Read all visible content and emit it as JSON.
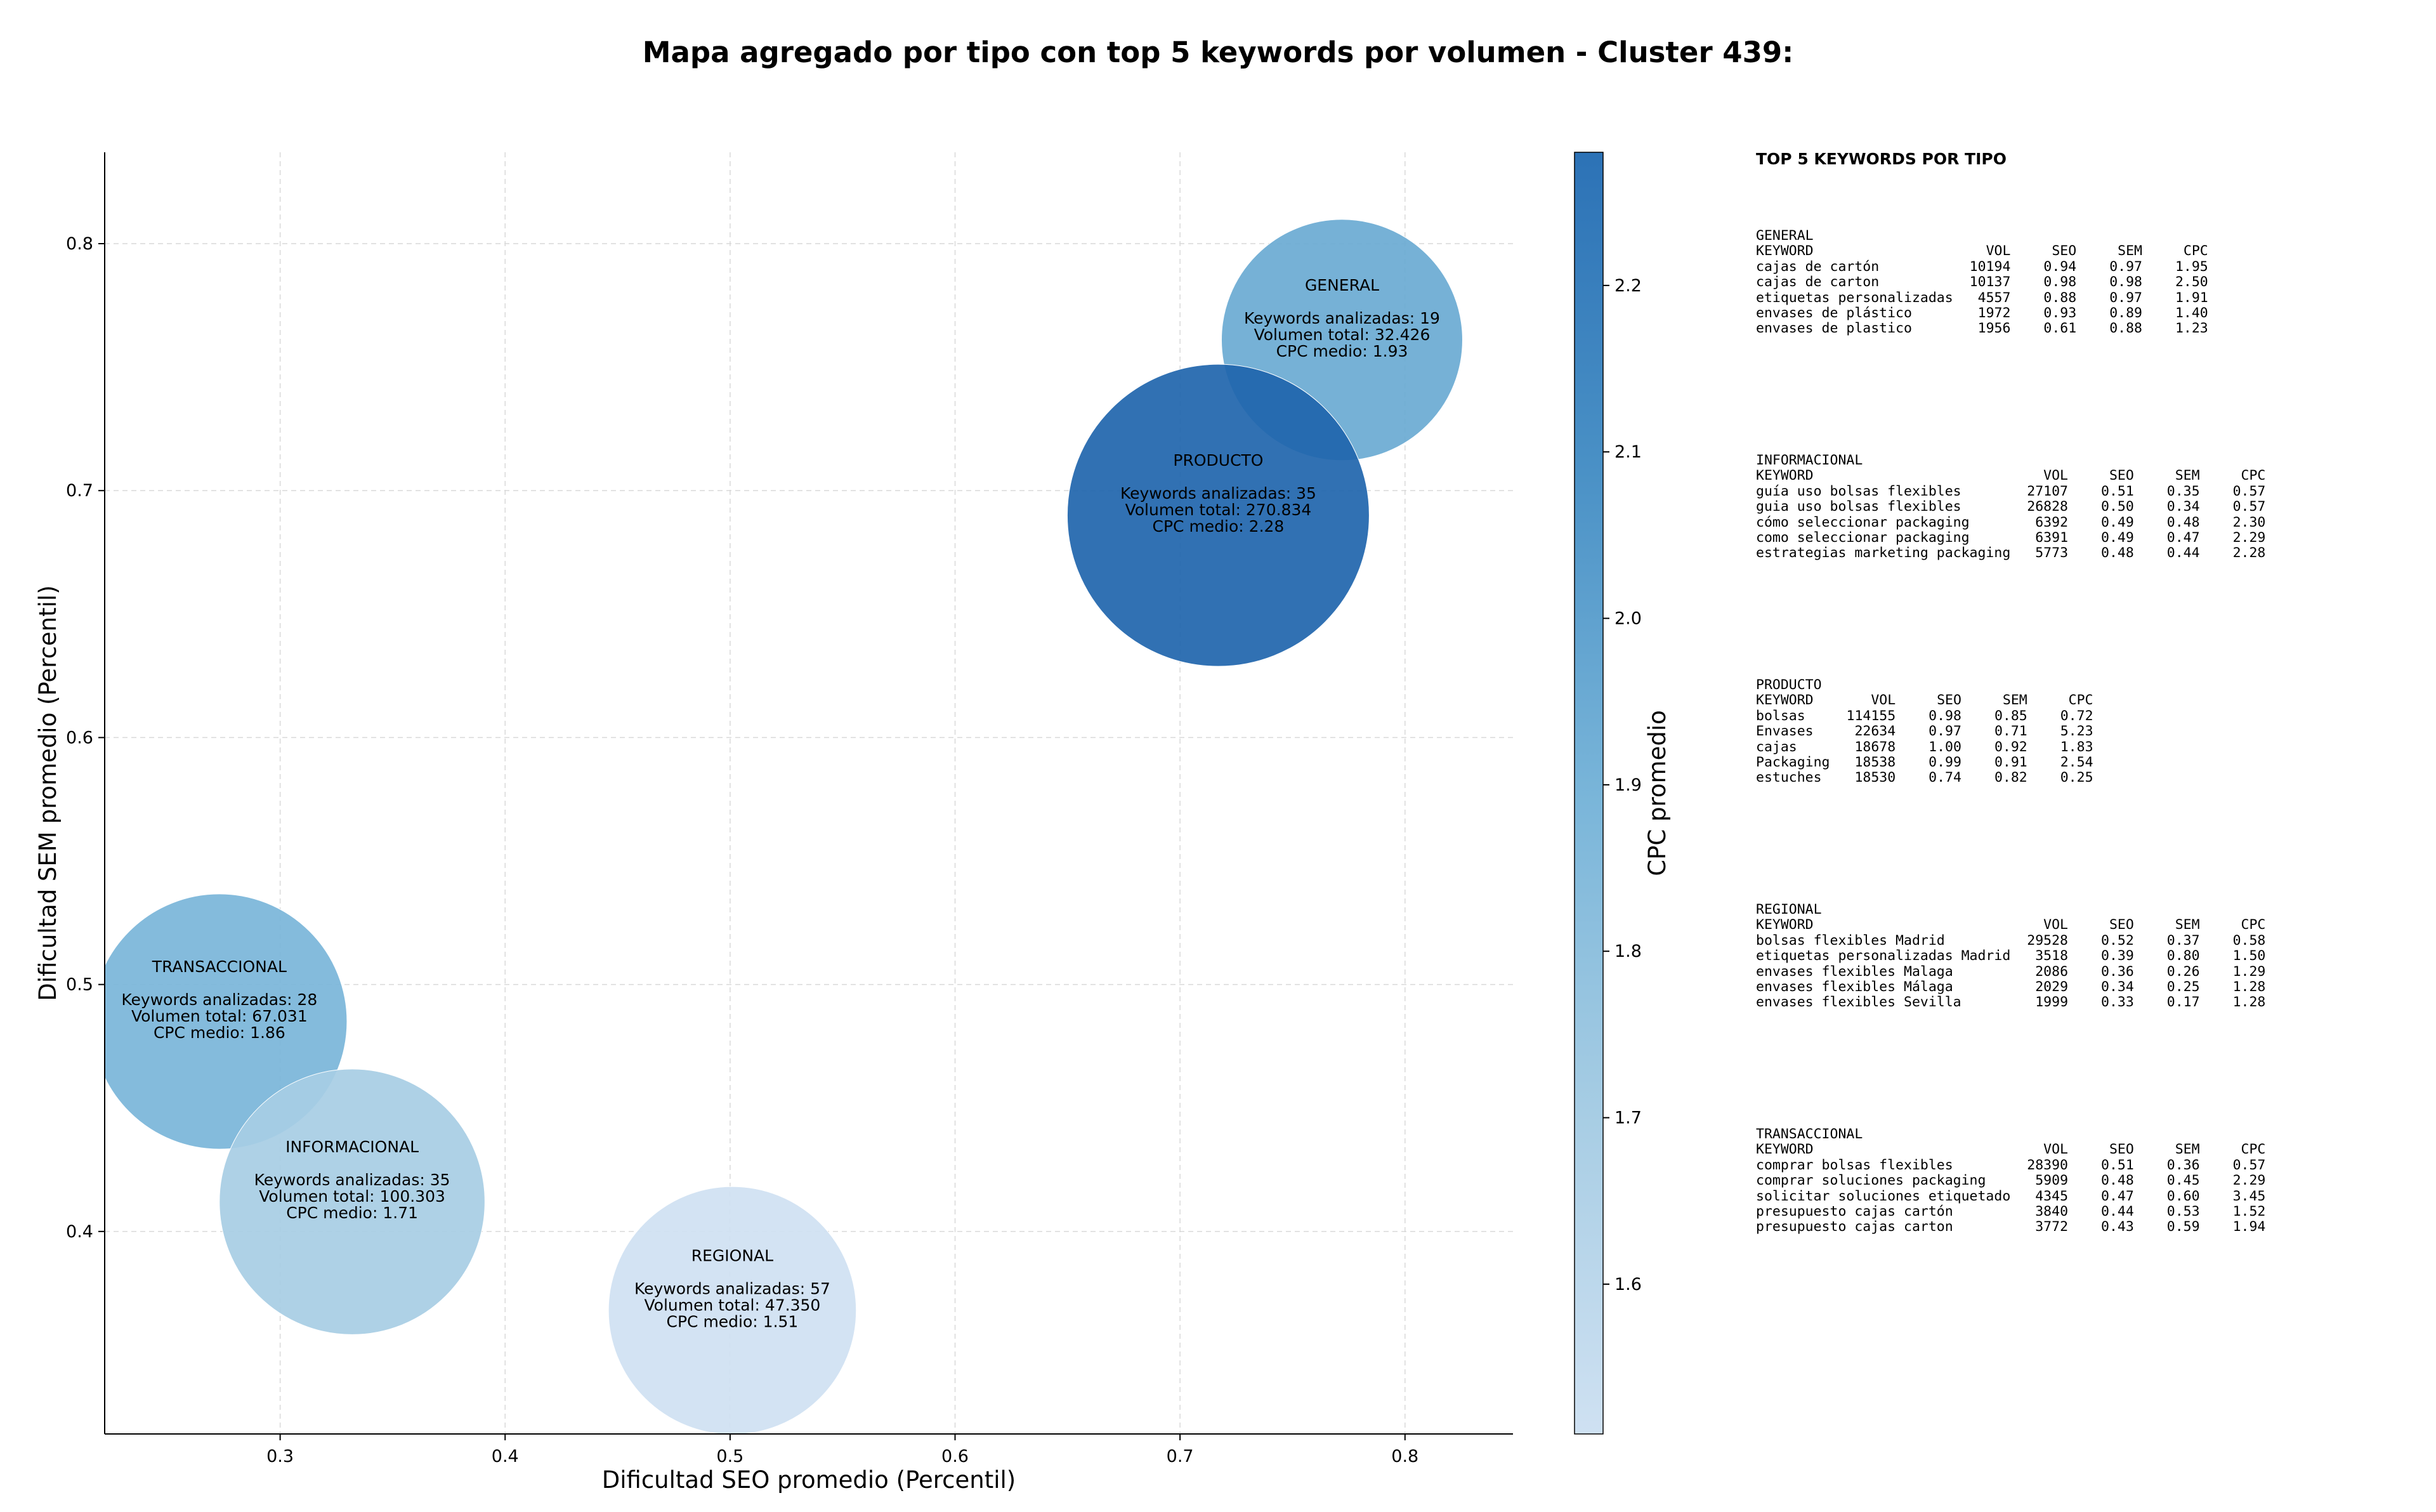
{
  "title": "Mapa agregado por tipo con top 5 keywords por volumen - Cluster 439:",
  "chart_data": {
    "type": "scatter",
    "subtype": "bubble",
    "xlabel": "Dificultad SEO promedio (Percentil)",
    "ylabel": "Dificultad SEM promedio (Percentil)",
    "colorbar_label": "CPC promedio",
    "xlim": [
      0.222,
      0.848
    ],
    "ylim": [
      0.318,
      0.837
    ],
    "xticks": [
      "0.3",
      "0.4",
      "0.5",
      "0.6",
      "0.7",
      "0.8"
    ],
    "yticks": [
      "0.4",
      "0.5",
      "0.6",
      "0.7",
      "0.8"
    ],
    "colorbar_range": [
      1.51,
      2.28
    ],
    "colorbar_ticks": [
      "1.6",
      "1.7",
      "1.8",
      "1.9",
      "2.0",
      "2.1",
      "2.2"
    ],
    "colormap": "Blues",
    "grid": true,
    "points": [
      {
        "name": "GENERAL",
        "x": 0.772,
        "y": 0.761,
        "keywords_label": "Keywords analizadas: 19",
        "volume_label": "Volumen total: 32.426",
        "cpc_label": "CPC medio: 1.93",
        "volume": 32426,
        "cpc": 1.93,
        "color": "#6aaad3"
      },
      {
        "name": "PRODUCTO",
        "x": 0.717,
        "y": 0.69,
        "keywords_label": "Keywords analizadas: 35",
        "volume_label": "Volumen total: 270.834",
        "cpc_label": "CPC medio: 2.28",
        "volume": 270834,
        "cpc": 2.28,
        "color": "#1f65ad"
      },
      {
        "name": "TRANSACCIONAL",
        "x": 0.273,
        "y": 0.485,
        "keywords_label": "Keywords analizadas: 28",
        "volume_label": "Volumen total: 67.031",
        "cpc_label": "CPC medio: 1.86",
        "volume": 67031,
        "cpc": 1.86,
        "color": "#79b5d9"
      },
      {
        "name": "INFORMACIONAL",
        "x": 0.332,
        "y": 0.412,
        "keywords_label": "Keywords analizadas: 35",
        "volume_label": "Volumen total: 100.303",
        "cpc_label": "CPC medio: 1.71",
        "volume": 100303,
        "cpc": 1.71,
        "color": "#a7cde4"
      },
      {
        "name": "REGIONAL",
        "x": 0.501,
        "y": 0.368,
        "keywords_label": "Keywords analizadas: 57",
        "volume_label": "Volumen total: 47.350",
        "cpc_label": "CPC medio: 1.51",
        "volume": 47350,
        "cpc": 1.51,
        "color": "#cfe1f2"
      }
    ]
  },
  "tables": {
    "heading": "TOP 5 KEYWORDS POR TIPO",
    "blocks": [
      {
        "type": "GENERAL",
        "columns": [
          "KEYWORD",
          "VOL",
          "SEO",
          "SEM",
          "CPC"
        ],
        "rows": [
          [
            "cajas de cartón",
            "10194",
            "0.94",
            "0.97",
            "1.95"
          ],
          [
            "cajas de carton",
            "10137",
            "0.98",
            "0.98",
            "2.50"
          ],
          [
            "etiquetas personalizadas",
            "4557",
            "0.88",
            "0.97",
            "1.91"
          ],
          [
            "envases de plástico",
            "1972",
            "0.93",
            "0.89",
            "1.40"
          ],
          [
            "envases de plastico",
            "1956",
            "0.61",
            "0.88",
            "1.23"
          ]
        ]
      },
      {
        "type": "INFORMACIONAL",
        "columns": [
          "KEYWORD",
          "VOL",
          "SEO",
          "SEM",
          "CPC"
        ],
        "rows": [
          [
            "guía uso bolsas flexibles",
            "27107",
            "0.51",
            "0.35",
            "0.57"
          ],
          [
            "guia uso bolsas flexibles",
            "26828",
            "0.50",
            "0.34",
            "0.57"
          ],
          [
            "cómo seleccionar packaging",
            "6392",
            "0.49",
            "0.48",
            "2.30"
          ],
          [
            "como seleccionar packaging",
            "6391",
            "0.49",
            "0.47",
            "2.29"
          ],
          [
            "estrategias marketing packaging",
            "5773",
            "0.48",
            "0.44",
            "2.28"
          ]
        ]
      },
      {
        "type": "PRODUCTO",
        "columns": [
          "KEYWORD",
          "VOL",
          "SEO",
          "SEM",
          "CPC"
        ],
        "rows": [
          [
            "bolsas",
            "114155",
            "0.98",
            "0.85",
            "0.72"
          ],
          [
            "Envases",
            "22634",
            "0.97",
            "0.71",
            "5.23"
          ],
          [
            "cajas",
            "18678",
            "1.00",
            "0.92",
            "1.83"
          ],
          [
            "Packaging",
            "18538",
            "0.99",
            "0.91",
            "2.54"
          ],
          [
            "estuches",
            "18530",
            "0.74",
            "0.82",
            "0.25"
          ]
        ]
      },
      {
        "type": "REGIONAL",
        "columns": [
          "KEYWORD",
          "VOL",
          "SEO",
          "SEM",
          "CPC"
        ],
        "rows": [
          [
            "bolsas flexibles Madrid",
            "29528",
            "0.52",
            "0.37",
            "0.58"
          ],
          [
            "etiquetas personalizadas Madrid",
            "3518",
            "0.39",
            "0.80",
            "1.50"
          ],
          [
            "envases flexibles Malaga",
            "2086",
            "0.36",
            "0.26",
            "1.29"
          ],
          [
            "envases flexibles Málaga",
            "2029",
            "0.34",
            "0.25",
            "1.28"
          ],
          [
            "envases flexibles Sevilla",
            "1999",
            "0.33",
            "0.17",
            "1.28"
          ]
        ]
      },
      {
        "type": "TRANSACCIONAL",
        "columns": [
          "KEYWORD",
          "VOL",
          "SEO",
          "SEM",
          "CPC"
        ],
        "rows": [
          [
            "comprar bolsas flexibles",
            "28390",
            "0.51",
            "0.36",
            "0.57"
          ],
          [
            "comprar soluciones packaging",
            "5909",
            "0.48",
            "0.45",
            "2.29"
          ],
          [
            "solicitar soluciones etiquetado",
            "4345",
            "0.47",
            "0.60",
            "3.45"
          ],
          [
            "presupuesto cajas cartón",
            "3840",
            "0.44",
            "0.53",
            "1.52"
          ],
          [
            "presupuesto cajas carton",
            "3772",
            "0.43",
            "0.59",
            "1.94"
          ]
        ]
      }
    ]
  }
}
